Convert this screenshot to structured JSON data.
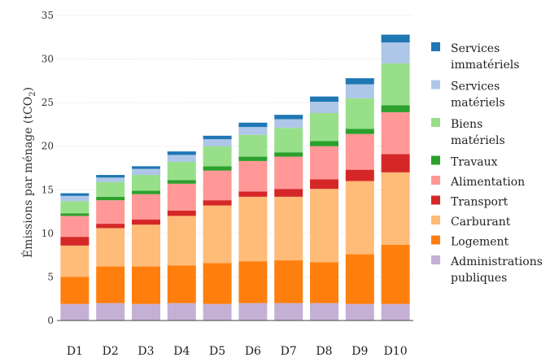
{
  "chart_data": {
    "type": "bar",
    "stacked": true,
    "title": "",
    "xlabel": "",
    "ylabel": "Émissions par ménage (tCO₂)",
    "ylabel_parts": [
      "Émissions par ménage (tCO",
      "2",
      ")"
    ],
    "ylim": [
      0,
      35
    ],
    "yticks": [
      "0",
      "5",
      "10",
      "15",
      "20",
      "25",
      "30",
      "35"
    ],
    "grid": true,
    "legend_position": "right",
    "categories": [
      "D1",
      "D2",
      "D3",
      "D4",
      "D5",
      "D6",
      "D7",
      "D8",
      "D9",
      "D10"
    ],
    "series": [
      {
        "name": "Administrations publiques",
        "legend_lines": [
          "Administrations",
          "publiques"
        ],
        "color": "#c5b0d5",
        "values": [
          1.9,
          2.0,
          1.9,
          2.0,
          1.9,
          2.0,
          2.0,
          2.0,
          1.9,
          1.9
        ]
      },
      {
        "name": "Logement",
        "legend_lines": [
          "Logement"
        ],
        "color": "#ff7f0e",
        "values": [
          3.1,
          4.2,
          4.3,
          4.3,
          4.7,
          4.8,
          4.9,
          4.7,
          5.7,
          6.8
        ]
      },
      {
        "name": "Carburant",
        "legend_lines": [
          "Carburant"
        ],
        "color": "#ffbb78",
        "values": [
          3.6,
          4.4,
          4.8,
          5.7,
          6.6,
          7.4,
          7.3,
          8.4,
          8.4,
          8.3
        ]
      },
      {
        "name": "Transport",
        "legend_lines": [
          "Transport"
        ],
        "color": "#d62728",
        "values": [
          1.0,
          0.5,
          0.6,
          0.6,
          0.6,
          0.6,
          0.9,
          1.1,
          1.3,
          2.1
        ]
      },
      {
        "name": "Alimentation",
        "legend_lines": [
          "Alimentation"
        ],
        "color": "#ff9896",
        "values": [
          2.4,
          2.7,
          2.9,
          3.1,
          3.4,
          3.5,
          3.7,
          3.8,
          4.1,
          4.8
        ]
      },
      {
        "name": "Travaux",
        "legend_lines": [
          "Travaux"
        ],
        "color": "#2ca02c",
        "values": [
          0.3,
          0.4,
          0.4,
          0.4,
          0.5,
          0.5,
          0.5,
          0.6,
          0.6,
          0.8
        ]
      },
      {
        "name": "Biens matériels",
        "legend_lines": [
          "Biens",
          "matériels"
        ],
        "color": "#98df8a",
        "values": [
          1.4,
          1.7,
          1.8,
          2.1,
          2.3,
          2.5,
          2.8,
          3.2,
          3.5,
          4.8
        ]
      },
      {
        "name": "Services matériels",
        "legend_lines": [
          "Services",
          "matériels"
        ],
        "color": "#aec7e8",
        "values": [
          0.6,
          0.5,
          0.7,
          0.8,
          0.8,
          0.9,
          1.0,
          1.3,
          1.6,
          2.4
        ]
      },
      {
        "name": "Services immatériels",
        "legend_lines": [
          "Services",
          "immatériels"
        ],
        "color": "#1f77b4",
        "values": [
          0.3,
          0.3,
          0.3,
          0.4,
          0.4,
          0.5,
          0.5,
          0.6,
          0.7,
          0.9
        ]
      }
    ],
    "legend_order": [
      8,
      7,
      6,
      5,
      4,
      3,
      2,
      1,
      0
    ]
  }
}
